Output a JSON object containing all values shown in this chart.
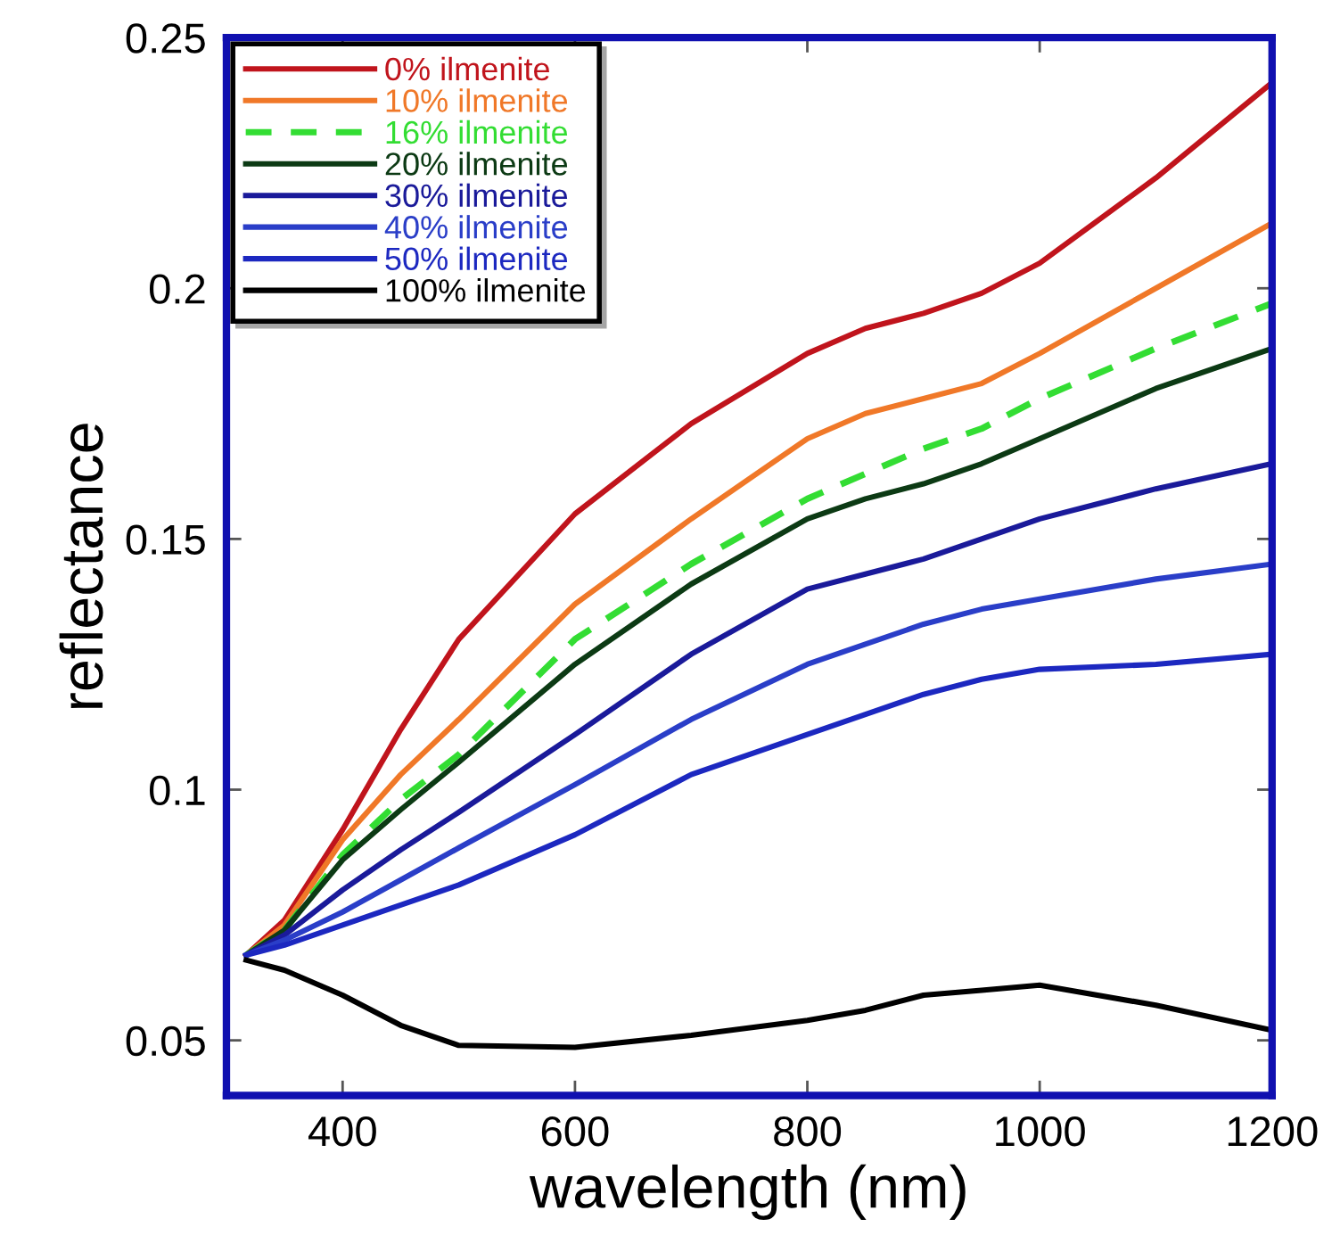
{
  "chart_data": {
    "type": "line",
    "xlabel": "wavelength (nm)",
    "ylabel": "reflectance",
    "x": [
      317,
      350,
      400,
      450,
      500,
      600,
      700,
      800,
      850,
      900,
      950,
      1000,
      1100,
      1200
    ],
    "xlim": [
      300,
      1200
    ],
    "xticks": [
      400,
      600,
      800,
      1000,
      1200
    ],
    "ylim": [
      0.039,
      0.25
    ],
    "yticks": [
      0.05,
      0.1,
      0.15,
      0.2,
      0.25
    ],
    "grid": false,
    "legend": "top left",
    "marker": "none",
    "series": [
      {
        "name": "0% ilmenite",
        "color": "#c0141c",
        "values": [
          0.067,
          0.074,
          0.092,
          0.112,
          0.13,
          0.155,
          0.173,
          0.187,
          0.192,
          0.195,
          0.199,
          0.205,
          0.222,
          0.241
        ]
      },
      {
        "name": "10% ilmenite",
        "color": "#f07828",
        "values": [
          0.067,
          0.073,
          0.09,
          0.103,
          0.114,
          0.137,
          0.154,
          0.17,
          0.175,
          0.178,
          0.181,
          0.187,
          0.2,
          0.213
        ]
      },
      {
        "name": "16% ilmenite",
        "color": "#33dd33",
        "line_style": "dashed",
        "values": [
          0.067,
          0.072,
          0.087,
          0.098,
          0.107,
          0.13,
          0.145,
          0.158,
          0.163,
          0.168,
          0.172,
          0.178,
          0.188,
          0.197
        ]
      },
      {
        "name": "20% ilmenite",
        "color": "#0c3a14",
        "values": [
          0.067,
          0.072,
          0.086,
          0.096,
          0.1055,
          0.125,
          0.141,
          0.154,
          0.158,
          0.161,
          0.165,
          0.17,
          0.18,
          0.188
        ]
      },
      {
        "name": "30% ilmenite",
        "color": "#1a1a9a",
        "values": [
          0.067,
          0.071,
          0.08,
          0.088,
          0.0955,
          0.111,
          0.127,
          0.14,
          0.143,
          0.146,
          0.15,
          0.154,
          0.16,
          0.165
        ]
      },
      {
        "name": "40% ilmenite",
        "color": "#2a3ec8",
        "values": [
          0.067,
          0.07,
          0.0756,
          0.082,
          0.0884,
          0.101,
          0.114,
          0.125,
          0.129,
          0.133,
          0.136,
          0.138,
          0.142,
          0.145
        ]
      },
      {
        "name": "50% ilmenite",
        "color": "#1c28c0",
        "values": [
          0.067,
          0.069,
          0.073,
          0.077,
          0.081,
          0.091,
          0.103,
          0.111,
          0.115,
          0.119,
          0.122,
          0.124,
          0.125,
          0.127
        ]
      },
      {
        "name": "100% ilmenite",
        "color": "#000000",
        "values": [
          0.066,
          0.064,
          0.059,
          0.053,
          0.049,
          0.0486,
          0.051,
          0.054,
          0.056,
          0.059,
          0.06,
          0.061,
          0.057,
          0.052
        ]
      }
    ]
  }
}
